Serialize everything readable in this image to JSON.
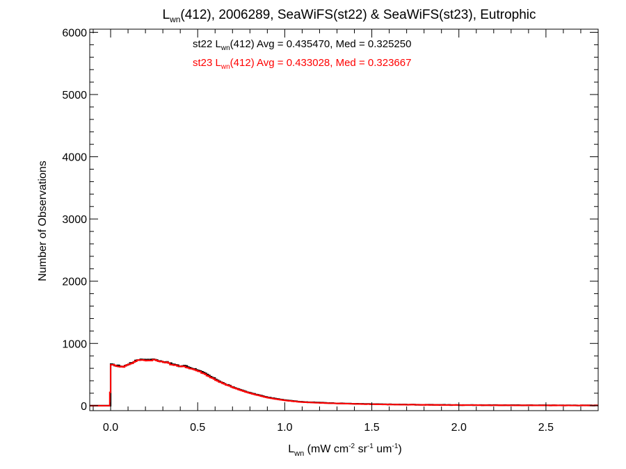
{
  "chart_data": {
    "type": "line",
    "title": {
      "main": "L",
      "main_sub": "wn",
      "rest": "(412), 2006289, SeaWiFS(st22) & SeaWiFS(st23), Eutrophic"
    },
    "xlabel": {
      "main": "L",
      "main_sub": "wn",
      "unit_open": " (mW cm",
      "unit_sup1": "-2",
      "unit_mid": " sr",
      "unit_sup2": "-1",
      "unit_end": " um",
      "unit_sup3": "-1",
      "unit_close": ")"
    },
    "ylabel": "Number of Observations",
    "xlim": [
      -0.12,
      2.8
    ],
    "ylim": [
      -80,
      6050
    ],
    "x_ticks": [
      0.0,
      0.5,
      1.0,
      1.5,
      2.0,
      2.5
    ],
    "x_tick_labels": [
      "0.0",
      "0.5",
      "1.0",
      "1.5",
      "2.0",
      "2.5"
    ],
    "y_ticks": [
      0,
      1000,
      2000,
      3000,
      4000,
      5000,
      6000
    ],
    "y_tick_labels": [
      "0",
      "1000",
      "2000",
      "3000",
      "4000",
      "5000",
      "6000"
    ],
    "x_minor_step": 0.1,
    "y_minor_step": 200,
    "grid": false,
    "bin_width": 0.01,
    "annotations": [
      {
        "id": "st22",
        "color": "#000000",
        "prefix": "st22 L",
        "sub": "wn",
        "rest": "(412) Avg = 0.435470, Med = 0.325250"
      },
      {
        "id": "st23",
        "color": "#ff0000",
        "prefix": "st23 L",
        "sub": "wn",
        "rest": "(412) Avg = 0.433028, Med = 0.323667"
      }
    ],
    "series": [
      {
        "name": "st22",
        "color": "#000000",
        "x": [
          -0.12,
          -0.005,
          0.0,
          0.025,
          0.05,
          0.075,
          0.1,
          0.125,
          0.15,
          0.175,
          0.2,
          0.225,
          0.25,
          0.275,
          0.3,
          0.325,
          0.35,
          0.375,
          0.4,
          0.425,
          0.45,
          0.475,
          0.5,
          0.525,
          0.55,
          0.575,
          0.6,
          0.625,
          0.65,
          0.7,
          0.75,
          0.8,
          0.85,
          0.9,
          0.95,
          1.0,
          1.05,
          1.1,
          1.2,
          1.3,
          1.4,
          1.5,
          1.6,
          1.7,
          1.8,
          1.9,
          2.0,
          2.2,
          2.4,
          2.6,
          2.8
        ],
        "y": [
          0,
          0,
          665,
          650,
          640,
          625,
          665,
          690,
          735,
          740,
          745,
          730,
          750,
          720,
          705,
          705,
          670,
          655,
          630,
          645,
          615,
          595,
          575,
          540,
          505,
          465,
          430,
          395,
          355,
          300,
          250,
          205,
          170,
          135,
          110,
          90,
          75,
          60,
          48,
          38,
          30,
          25,
          20,
          17,
          14,
          12,
          10,
          8,
          6,
          5,
          4
        ]
      },
      {
        "name": "st23",
        "color": "#ff0000",
        "x": [
          -0.12,
          -0.005,
          0.0,
          0.025,
          0.05,
          0.075,
          0.1,
          0.125,
          0.15,
          0.175,
          0.2,
          0.225,
          0.25,
          0.275,
          0.3,
          0.325,
          0.35,
          0.375,
          0.4,
          0.425,
          0.45,
          0.475,
          0.5,
          0.525,
          0.55,
          0.575,
          0.6,
          0.625,
          0.65,
          0.7,
          0.75,
          0.8,
          0.85,
          0.9,
          0.95,
          1.0,
          1.05,
          1.1,
          1.2,
          1.3,
          1.4,
          1.5,
          1.6,
          1.7,
          1.8,
          1.9,
          2.0,
          2.2,
          2.4,
          2.6,
          2.8
        ],
        "y": [
          0,
          215,
          665,
          645,
          630,
          625,
          660,
          685,
          725,
          735,
          730,
          725,
          740,
          715,
          700,
          695,
          660,
          650,
          625,
          630,
          605,
          585,
          560,
          530,
          495,
          455,
          420,
          385,
          350,
          295,
          245,
          200,
          165,
          130,
          105,
          85,
          70,
          57,
          45,
          36,
          28,
          23,
          19,
          16,
          13,
          11,
          9,
          7,
          5,
          4,
          4
        ]
      }
    ]
  }
}
